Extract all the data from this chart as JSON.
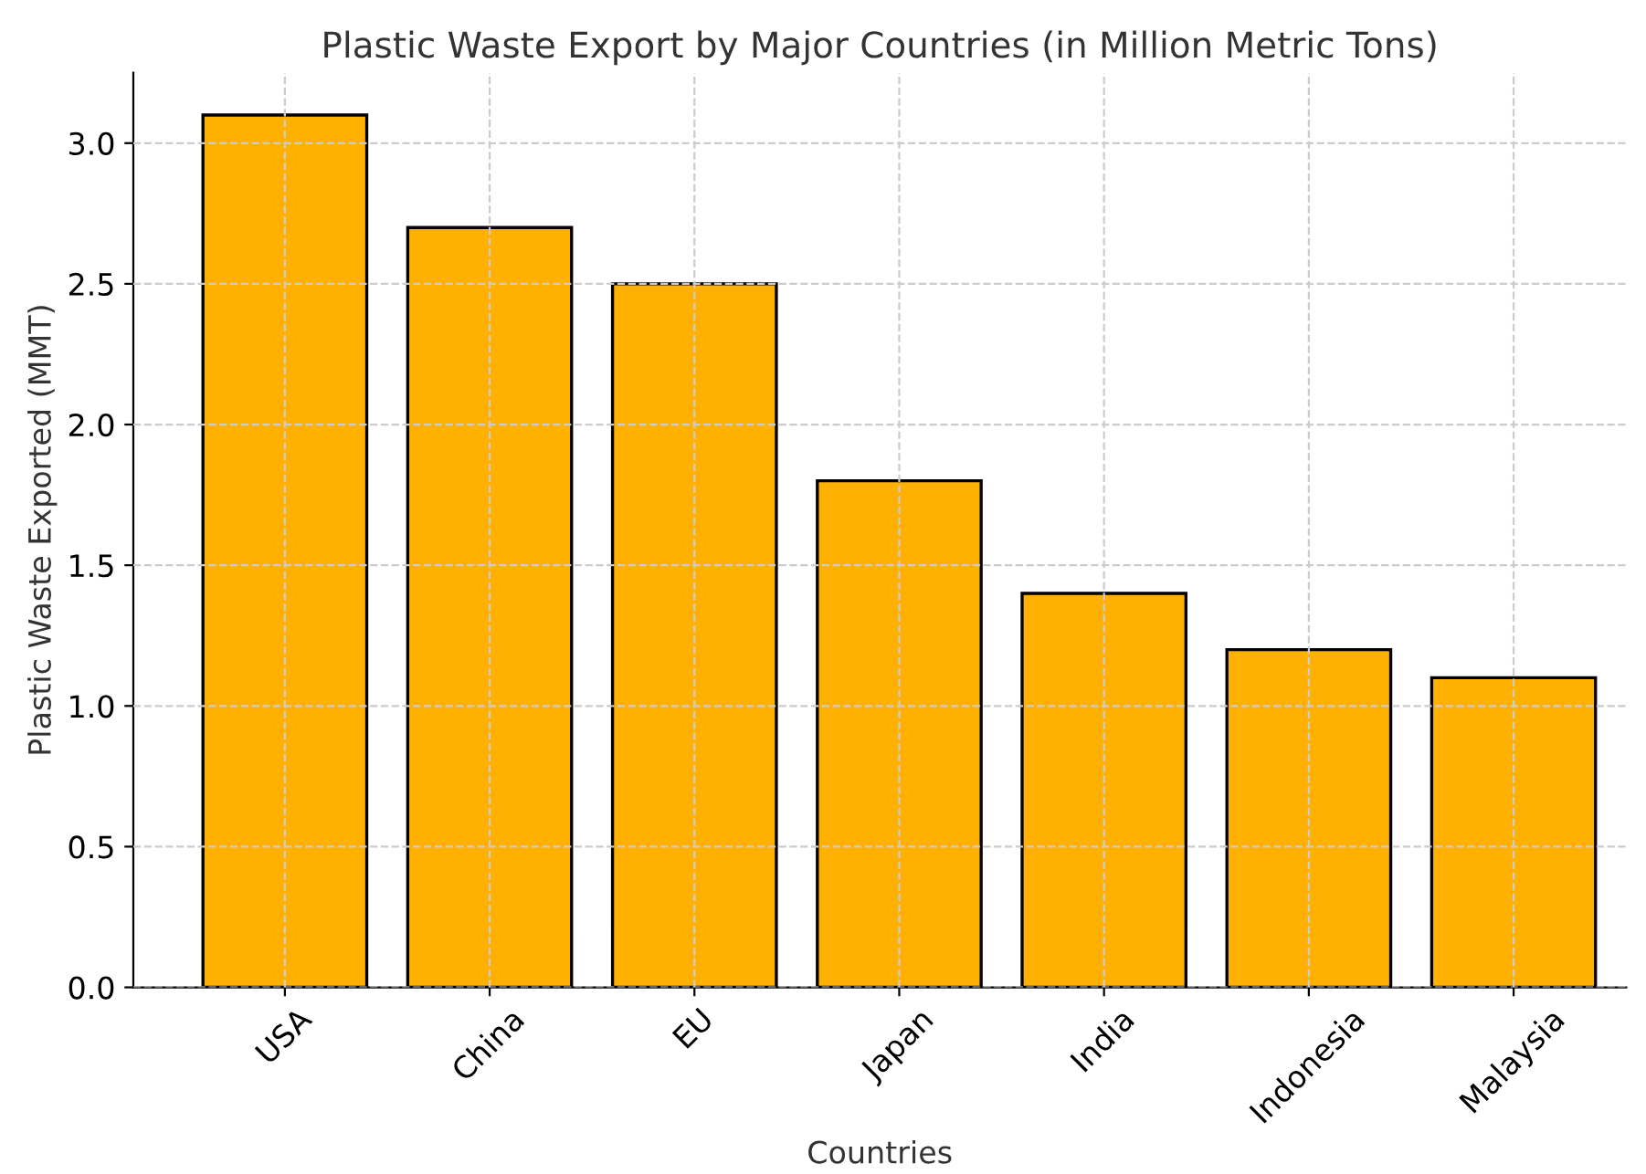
{
  "chart_data": {
    "type": "bar",
    "title": "Plastic Waste Export by Major Countries (in Million Metric Tons)",
    "xlabel": "Countries",
    "ylabel": "Plastic Waste Exported (MMT)",
    "categories": [
      "USA",
      "China",
      "EU",
      "Japan",
      "India",
      "Indonesia",
      "Malaysia"
    ],
    "values": [
      3.1,
      2.7,
      2.5,
      1.8,
      1.4,
      1.2,
      1.1
    ],
    "color": "#ffb000",
    "ylim": [
      0,
      3.25
    ],
    "yticks": [
      {
        "value": 0,
        "label": "0.0"
      },
      0.5,
      {
        "value": 1,
        "label": "1.0"
      },
      1.5,
      {
        "value": 2,
        "label": "2.0"
      },
      2.5,
      {
        "value": 3,
        "label": "3.0"
      }
    ],
    "grid": true,
    "legend": false
  }
}
